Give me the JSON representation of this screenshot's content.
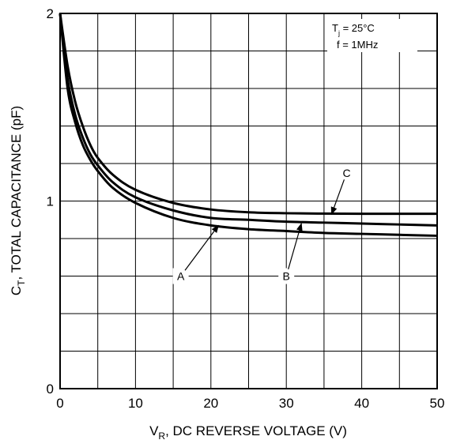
{
  "chart_data": {
    "type": "line",
    "title": "",
    "xlabel": {
      "main": "V",
      "sub": "R",
      "rest": ", DC REVERSE VOLTAGE (V)"
    },
    "ylabel": {
      "main": "C",
      "sub": "T",
      "rest": ", TOTAL CAPACITANCE (pF)"
    },
    "xlim": [
      0,
      50
    ],
    "ylim": [
      0,
      2
    ],
    "grid": true,
    "x_grid_step": 5,
    "y_grid_step": 0.2,
    "x_ticks": [
      {
        "value": 0,
        "label": "0"
      },
      {
        "value": 10,
        "label": "10"
      },
      {
        "value": 20,
        "label": "20"
      },
      {
        "value": 30,
        "label": "30"
      },
      {
        "value": 40,
        "label": "40"
      },
      {
        "value": 50,
        "label": "50"
      }
    ],
    "y_ticks": [
      {
        "value": 0,
        "label": "0"
      },
      {
        "value": 1,
        "label": "1"
      },
      {
        "value": 2,
        "label": "2"
      }
    ],
    "conditions": [
      {
        "main": "T",
        "sub": "j",
        "rest": " = 25°C"
      },
      {
        "main": "f = 1MHz",
        "sub": "",
        "rest": ""
      }
    ],
    "series": [
      {
        "name": "A",
        "x": [
          0,
          1,
          2,
          3,
          4,
          5,
          7,
          10,
          15,
          20,
          25,
          30,
          35,
          40,
          45,
          50
        ],
        "values": [
          2.0,
          1.6,
          1.42,
          1.3,
          1.22,
          1.16,
          1.07,
          0.99,
          0.91,
          0.87,
          0.85,
          0.84,
          0.83,
          0.825,
          0.82,
          0.815
        ]
      },
      {
        "name": "B",
        "x": [
          0,
          1,
          2,
          3,
          4,
          5,
          7,
          10,
          15,
          20,
          25,
          30,
          35,
          40,
          45,
          50
        ],
        "values": [
          2.0,
          1.65,
          1.46,
          1.34,
          1.25,
          1.19,
          1.1,
          1.02,
          0.95,
          0.91,
          0.9,
          0.89,
          0.885,
          0.88,
          0.875,
          0.87
        ]
      },
      {
        "name": "C",
        "x": [
          0,
          1,
          2,
          3,
          4,
          5,
          7,
          10,
          15,
          20,
          25,
          30,
          35,
          40,
          45,
          50
        ],
        "values": [
          2.0,
          1.72,
          1.53,
          1.4,
          1.3,
          1.23,
          1.14,
          1.06,
          0.99,
          0.955,
          0.94,
          0.935,
          0.933,
          0.932,
          0.932,
          0.932
        ]
      }
    ],
    "annotations": [
      {
        "label": "A",
        "label_at": [
          16,
          0.6
        ],
        "arrow_to": [
          21,
          0.87
        ]
      },
      {
        "label": "B",
        "label_at": [
          30,
          0.6
        ],
        "arrow_to": [
          32,
          0.88
        ]
      },
      {
        "label": "C",
        "label_at": [
          38,
          1.15
        ],
        "arrow_to": [
          36,
          0.93
        ]
      }
    ]
  }
}
